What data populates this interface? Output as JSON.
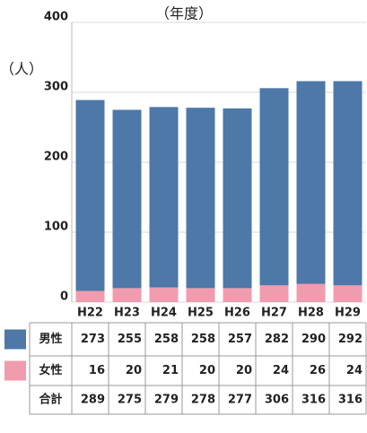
{
  "chart_data": {
    "type": "stacked_bar",
    "x_label": "（年度）",
    "y_label": "（人）",
    "categories": [
      "H22",
      "H23",
      "H24",
      "H25",
      "H26",
      "H27",
      "H28",
      "H29"
    ],
    "series": [
      {
        "name": "男性",
        "color": "#4d78a8",
        "values": [
          273,
          255,
          258,
          258,
          257,
          282,
          290,
          292
        ]
      },
      {
        "name": "女性",
        "color": "#f19cae",
        "values": [
          16,
          20,
          21,
          20,
          20,
          24,
          26,
          24
        ]
      }
    ],
    "total": {
      "name": "合計",
      "values": [
        289,
        275,
        279,
        278,
        277,
        306,
        316,
        316
      ]
    },
    "ylim": [
      0,
      400
    ],
    "yticks": [
      0,
      100,
      200,
      300,
      400
    ],
    "grid": true
  }
}
